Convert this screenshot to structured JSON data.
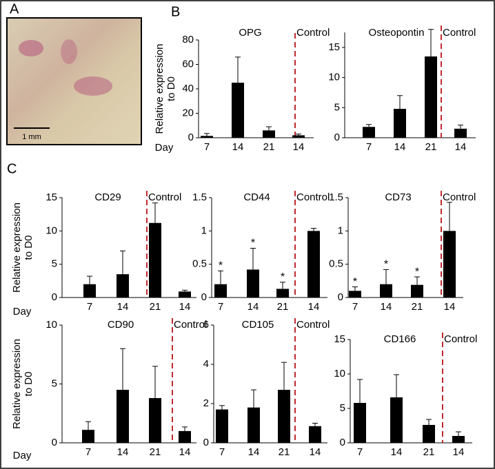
{
  "panel_labels": [
    "A",
    "B",
    "C"
  ],
  "scale_bar": "1 mm",
  "chart_data": [
    {
      "type": "bar",
      "title": "OPG",
      "control_label": "Control",
      "x_label": "Day",
      "y_label": [
        "Relative expression",
        "to D0"
      ],
      "categories": [
        "7",
        "14",
        "21",
        "14"
      ],
      "values": [
        1.5,
        45,
        6,
        2
      ],
      "errors": [
        2,
        21,
        3,
        1
      ],
      "ylim": [
        0,
        80
      ],
      "yticks": [
        0,
        20,
        40,
        60,
        80
      ],
      "color": "#000000",
      "divider_color": "#c0282d"
    },
    {
      "type": "bar",
      "title": "Osteopontin",
      "control_label": "Control",
      "categories": [
        "7",
        "14",
        "21",
        "14"
      ],
      "values": [
        1.8,
        4.8,
        13.5,
        1.5
      ],
      "errors": [
        0.4,
        2.2,
        4.5,
        0.6
      ],
      "ylim": [
        0,
        17.5
      ],
      "yticks": [
        0,
        5,
        10,
        15
      ],
      "color": "#000000",
      "divider_color": "#c0282d"
    },
    {
      "type": "bar",
      "title": "CD29",
      "control_label": "Control",
      "x_label": "Day",
      "y_label": [
        "Relative expression",
        "to D0"
      ],
      "categories": [
        "7",
        "14",
        "21",
        "14"
      ],
      "values": [
        2,
        3.5,
        11.2,
        0.9
      ],
      "errors": [
        1.2,
        3.5,
        3,
        0.2
      ],
      "ylim": [
        0,
        15
      ],
      "yticks": [
        0,
        5,
        10,
        15
      ],
      "color": "#000000",
      "divider_color": "#c0282d"
    },
    {
      "type": "bar",
      "title": "CD44",
      "control_label": "Control",
      "categories": [
        "7",
        "14",
        "21",
        "14"
      ],
      "values": [
        0.2,
        0.42,
        0.13,
        1.0
      ],
      "errors": [
        0.2,
        0.32,
        0.1,
        0.04
      ],
      "markers": [
        "*",
        "*",
        "*",
        null
      ],
      "ylim": [
        0,
        1.5
      ],
      "yticks": [
        0,
        0.5,
        1,
        1.5
      ],
      "color": "#000000",
      "divider_color": "#c0282d"
    },
    {
      "type": "bar",
      "title": "CD73",
      "control_label": "Control",
      "categories": [
        "7",
        "14",
        "21",
        "14"
      ],
      "values": [
        0.1,
        0.2,
        0.19,
        1.0
      ],
      "errors": [
        0.06,
        0.22,
        0.12,
        0.43
      ],
      "markers": [
        "*",
        "*",
        "*",
        null
      ],
      "ylim": [
        0,
        1.5
      ],
      "yticks": [
        0,
        0.5,
        1,
        1.5
      ],
      "color": "#000000",
      "divider_color": "#c0282d"
    },
    {
      "type": "bar",
      "title": "CD90",
      "control_label": "Control",
      "x_label": "Day",
      "y_label": [
        "Relative expression",
        "to D0"
      ],
      "categories": [
        "7",
        "14",
        "21",
        "14"
      ],
      "values": [
        1.1,
        4.5,
        3.8,
        1.0
      ],
      "errors": [
        0.7,
        3.5,
        2.7,
        0.35
      ],
      "ylim": [
        0,
        10
      ],
      "yticks": [
        0,
        5,
        10
      ],
      "color": "#000000",
      "divider_color": "#c0282d"
    },
    {
      "type": "bar",
      "title": "CD105",
      "control_label": "Control",
      "categories": [
        "7",
        "14",
        "21",
        "14"
      ],
      "values": [
        1.7,
        1.8,
        2.7,
        0.85
      ],
      "errors": [
        0.2,
        0.9,
        1.4,
        0.15
      ],
      "ylim": [
        0,
        6
      ],
      "yticks": [
        0,
        2,
        4,
        6
      ],
      "color": "#000000",
      "divider_color": "#c0282d"
    },
    {
      "type": "bar",
      "title": "CD166",
      "control_label": "Control",
      "categories": [
        "7",
        "14",
        "21",
        "14"
      ],
      "values": [
        5.8,
        6.6,
        2.6,
        1.0
      ],
      "errors": [
        3.4,
        3.3,
        0.8,
        0.6
      ],
      "ylim": [
        0,
        15
      ],
      "yticks": [
        0,
        5,
        10,
        15
      ],
      "color": "#000000",
      "divider_color": "#c0282d"
    }
  ]
}
